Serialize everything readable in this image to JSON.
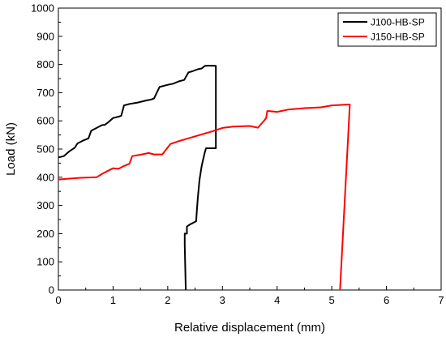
{
  "chart_data": {
    "type": "line",
    "xlabel": "Relative displacement (mm)",
    "ylabel": "Load (kN)",
    "xlim": [
      0,
      7
    ],
    "ylim": [
      0,
      1000
    ],
    "xticks": [
      0,
      1,
      2,
      3,
      4,
      5,
      6,
      7
    ],
    "yticks": [
      0,
      100,
      200,
      300,
      400,
      500,
      600,
      700,
      800,
      900,
      1000
    ],
    "grid": false,
    "legend_position": "top-right",
    "series": [
      {
        "name": "J100-HB-SP",
        "color": "#000000",
        "points": [
          [
            0.0,
            470
          ],
          [
            0.1,
            475
          ],
          [
            0.2,
            492
          ],
          [
            0.3,
            505
          ],
          [
            0.35,
            520
          ],
          [
            0.45,
            530
          ],
          [
            0.55,
            538
          ],
          [
            0.6,
            565
          ],
          [
            0.7,
            575
          ],
          [
            0.8,
            585
          ],
          [
            0.85,
            586
          ],
          [
            0.9,
            593
          ],
          [
            1.0,
            610
          ],
          [
            1.1,
            615
          ],
          [
            1.15,
            618
          ],
          [
            1.2,
            655
          ],
          [
            1.3,
            660
          ],
          [
            1.45,
            665
          ],
          [
            1.6,
            672
          ],
          [
            1.7,
            676
          ],
          [
            1.75,
            680
          ],
          [
            1.85,
            720
          ],
          [
            2.0,
            728
          ],
          [
            2.1,
            732
          ],
          [
            2.2,
            740
          ],
          [
            2.3,
            745
          ],
          [
            2.38,
            772
          ],
          [
            2.45,
            776
          ],
          [
            2.55,
            783
          ],
          [
            2.62,
            786
          ],
          [
            2.68,
            795
          ],
          [
            2.75,
            796
          ],
          [
            2.88,
            795
          ],
          [
            2.88,
            503
          ],
          [
            2.7,
            503
          ],
          [
            2.68,
            490
          ],
          [
            2.62,
            440
          ],
          [
            2.58,
            390
          ],
          [
            2.55,
            325
          ],
          [
            2.53,
            275
          ],
          [
            2.52,
            244
          ],
          [
            2.4,
            232
          ],
          [
            2.35,
            225
          ],
          [
            2.35,
            200
          ],
          [
            2.31,
            200
          ],
          [
            2.31,
            160
          ],
          [
            2.33,
            0
          ]
        ]
      },
      {
        "name": "J150-HB-SP",
        "color": "#ff0000",
        "points": [
          [
            0.0,
            392
          ],
          [
            0.2,
            395
          ],
          [
            0.4,
            398
          ],
          [
            0.7,
            400
          ],
          [
            0.8,
            412
          ],
          [
            1.0,
            432
          ],
          [
            1.1,
            430
          ],
          [
            1.2,
            440
          ],
          [
            1.3,
            448
          ],
          [
            1.35,
            475
          ],
          [
            1.5,
            480
          ],
          [
            1.65,
            486
          ],
          [
            1.75,
            481
          ],
          [
            1.9,
            481
          ],
          [
            2.05,
            518
          ],
          [
            2.2,
            528
          ],
          [
            2.5,
            545
          ],
          [
            2.8,
            562
          ],
          [
            3.0,
            575
          ],
          [
            3.2,
            580
          ],
          [
            3.5,
            582
          ],
          [
            3.65,
            576
          ],
          [
            3.75,
            598
          ],
          [
            3.8,
            610
          ],
          [
            3.82,
            635
          ],
          [
            3.9,
            634
          ],
          [
            4.0,
            632
          ],
          [
            4.2,
            640
          ],
          [
            4.5,
            645
          ],
          [
            4.8,
            648
          ],
          [
            5.0,
            655
          ],
          [
            5.3,
            658
          ],
          [
            5.33,
            658
          ],
          [
            5.15,
            0
          ]
        ]
      }
    ]
  }
}
